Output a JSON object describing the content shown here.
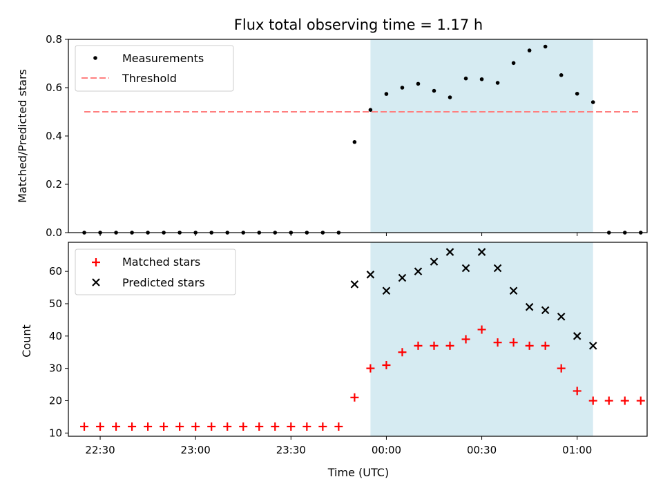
{
  "chart_data": [
    {
      "type": "scatter",
      "title": "Flux total observing time = 1.17 h",
      "xlabel": "",
      "ylabel": "Matched/Predicted stars",
      "xlim": [
        "22:20",
        "01:22"
      ],
      "ylim": [
        0,
        0.8
      ],
      "yticks": [
        "0.0",
        "0.2",
        "0.4",
        "0.6",
        "0.8"
      ],
      "grid": false,
      "legend_position": "top-left",
      "highlight_span": [
        "23:55",
        "01:05"
      ],
      "highlight_color": "#add8e6",
      "threshold": {
        "name": "Threshold",
        "value": 0.5,
        "x_range": [
          "22:25",
          "01:20"
        ],
        "color": "#ff7f7f"
      },
      "series": [
        {
          "name": "Measurements",
          "color": "#000000",
          "x": [
            "22:25",
            "22:30",
            "22:35",
            "22:40",
            "22:45",
            "22:50",
            "22:55",
            "23:00",
            "23:05",
            "23:10",
            "23:15",
            "23:20",
            "23:25",
            "23:30",
            "23:35",
            "23:40",
            "23:45",
            "23:50",
            "23:55",
            "00:00",
            "00:05",
            "00:10",
            "00:15",
            "00:20",
            "00:25",
            "00:30",
            "00:35",
            "00:40",
            "00:45",
            "00:50",
            "00:55",
            "01:00",
            "01:05",
            "01:10",
            "01:15",
            "01:20"
          ],
          "y": [
            0,
            0,
            0,
            0,
            0,
            0,
            0,
            0,
            0,
            0,
            0,
            0,
            0,
            0,
            0,
            0,
            0,
            0.375,
            0.508,
            0.574,
            0.6,
            0.616,
            0.587,
            0.56,
            0.638,
            0.635,
            0.62,
            0.702,
            0.754,
            0.77,
            0.652,
            0.575,
            0.54,
            0,
            0,
            0
          ]
        }
      ]
    },
    {
      "type": "scatter",
      "title": "",
      "xlabel": "Time (UTC)",
      "ylabel": "Count",
      "xlim": [
        "22:20",
        "01:22"
      ],
      "ylim": [
        9,
        69
      ],
      "xticks": [
        "22:30",
        "23:00",
        "23:30",
        "00:00",
        "00:30",
        "01:00"
      ],
      "yticks": [
        "10",
        "20",
        "30",
        "40",
        "50",
        "60"
      ],
      "grid": false,
      "legend_position": "top-left",
      "highlight_span": [
        "23:55",
        "01:05"
      ],
      "series": [
        {
          "name": "Matched stars",
          "marker": "plus",
          "color": "#ff0000",
          "x": [
            "22:25",
            "22:30",
            "22:35",
            "22:40",
            "22:45",
            "22:50",
            "22:55",
            "23:00",
            "23:05",
            "23:10",
            "23:15",
            "23:20",
            "23:25",
            "23:30",
            "23:35",
            "23:40",
            "23:45",
            "23:50",
            "23:55",
            "00:00",
            "00:05",
            "00:10",
            "00:15",
            "00:20",
            "00:25",
            "00:30",
            "00:35",
            "00:40",
            "00:45",
            "00:50",
            "00:55",
            "01:00",
            "01:05",
            "01:10",
            "01:15",
            "01:20"
          ],
          "y": [
            12,
            12,
            12,
            12,
            12,
            12,
            12,
            12,
            12,
            12,
            12,
            12,
            12,
            12,
            12,
            12,
            12,
            21,
            30,
            31,
            35,
            37,
            37,
            37,
            39,
            42,
            38,
            38,
            37,
            37,
            30,
            23,
            20,
            20,
            20,
            20
          ]
        },
        {
          "name": "Predicted stars",
          "marker": "x",
          "color": "#000000",
          "x": [
            "23:50",
            "23:55",
            "00:00",
            "00:05",
            "00:10",
            "00:15",
            "00:20",
            "00:25",
            "00:30",
            "00:35",
            "00:40",
            "00:45",
            "00:50",
            "00:55",
            "01:00",
            "01:05"
          ],
          "y": [
            56,
            59,
            54,
            58,
            60,
            63,
            66,
            61,
            66,
            61,
            54,
            49,
            48,
            46,
            40,
            37
          ]
        }
      ]
    }
  ]
}
